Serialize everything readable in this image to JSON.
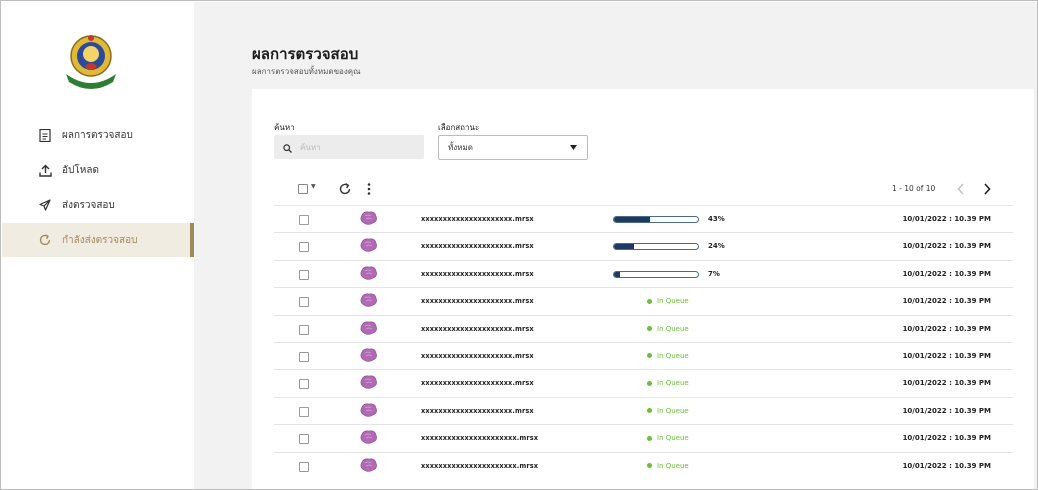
{
  "sidebar": {
    "items": [
      {
        "label": "ผลการตรวจสอบ",
        "icon": "document-icon"
      },
      {
        "label": "อัปโหลด",
        "icon": "upload-icon"
      },
      {
        "label": "ส่งตรวจสอบ",
        "icon": "send-icon"
      },
      {
        "label": "กำลังส่งตรวจสอบ",
        "icon": "refresh-icon",
        "active": true
      }
    ]
  },
  "header": {
    "title": "ผลการตรวจสอบ",
    "subtitle": "ผลการตรวจสอบทั้งหมดของคุณ"
  },
  "filters": {
    "search_label": "ค้นหา",
    "search_placeholder": "ค้นหา",
    "status_label": "เลือกสถานะ",
    "status_value": "ทั้งหมด"
  },
  "pager": {
    "text": "1 - 10 of 10"
  },
  "colors": {
    "accent": "#a08a5c",
    "progress": "#1e3a5f",
    "queue": "#6cbf3a"
  },
  "rows": [
    {
      "file": "xxxxxxxxxxxxxxxxxxxxx.mrsx",
      "type": "progress",
      "progress": 43,
      "progress_label": "43%",
      "date": "10/01/2022 : 10.39 PM"
    },
    {
      "file": "xxxxxxxxxxxxxxxxxxxxx.mrsx",
      "type": "progress",
      "progress": 24,
      "progress_label": "24%",
      "date": "10/01/2022 : 10.39 PM"
    },
    {
      "file": "xxxxxxxxxxxxxxxxxxxxx.mrsx",
      "type": "progress",
      "progress": 7,
      "progress_label": "7%",
      "date": "10/01/2022 : 10.39 PM"
    },
    {
      "file": "xxxxxxxxxxxxxxxxxxxxx.mrsx",
      "type": "queue",
      "status": "In Queue",
      "date": "10/01/2022 : 10.39 PM"
    },
    {
      "file": "xxxxxxxxxxxxxxxxxxxxx.mrsx",
      "type": "queue",
      "status": "In Queue",
      "date": "10/01/2022 : 10.39 PM"
    },
    {
      "file": "xxxxxxxxxxxxxxxxxxxxx.mrsx",
      "type": "queue",
      "status": "In Queue",
      "date": "10/01/2022 : 10.39 PM"
    },
    {
      "file": "xxxxxxxxxxxxxxxxxxxxx.mrsx",
      "type": "queue",
      "status": "In Queue",
      "date": "10/01/2022 : 10.39 PM"
    },
    {
      "file": "xxxxxxxxxxxxxxxxxxxxx.mrsx",
      "type": "queue",
      "status": "In Queue",
      "date": "10/01/2022 : 10.39 PM"
    },
    {
      "file": "xxxxxxxxxxxxxxxxxxxxxx.mrsx",
      "type": "queue",
      "status": "In Queue",
      "date": "10/01/2022 : 10.39 PM"
    },
    {
      "file": "xxxxxxxxxxxxxxxxxxxxxx.mrsx",
      "type": "queue",
      "status": "In Queue",
      "date": "10/01/2022 : 10.39 PM"
    }
  ]
}
